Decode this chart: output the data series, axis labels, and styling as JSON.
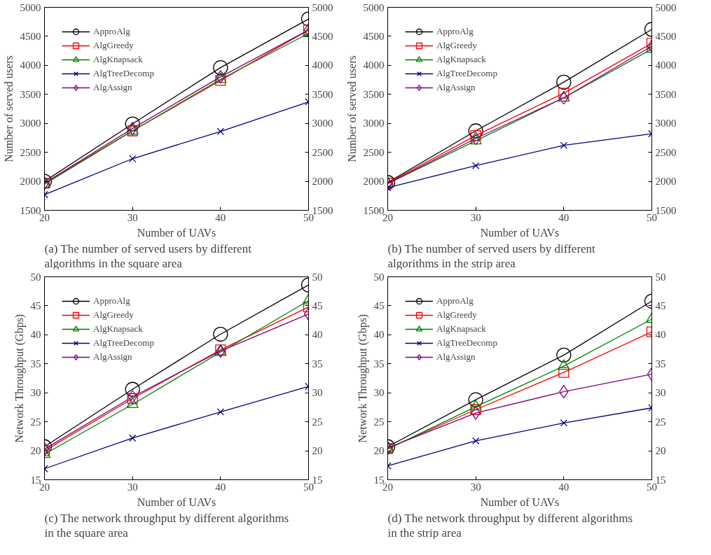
{
  "chart_data": [
    {
      "type": "line",
      "xlabel": "Number of UAVs",
      "ylabel": "Number of served users",
      "x": [
        20,
        30,
        40,
        50
      ],
      "xlim": [
        20,
        50
      ],
      "xticks": [
        20,
        30,
        40,
        50
      ],
      "ylim": [
        1500,
        5000
      ],
      "yticks": [
        1500,
        2000,
        2500,
        3000,
        3500,
        4000,
        4500,
        5000
      ],
      "y2lim": [
        1500,
        5000
      ],
      "y2ticks": [
        1500,
        2000,
        2500,
        3000,
        3500,
        4000,
        4500,
        5000
      ],
      "legend": "top left",
      "grid": false,
      "series": [
        {
          "name": "ApproAlg",
          "color": "#000000",
          "marker": "circle",
          "values": [
            2000,
            2990,
            3960,
            4800
          ]
        },
        {
          "name": "AlgGreedy",
          "color": "#ff0000",
          "marker": "square",
          "values": [
            1970,
            2870,
            3740,
            4610
          ]
        },
        {
          "name": "AlgKnapsack",
          "color": "#008000",
          "marker": "triangle",
          "values": [
            1950,
            2870,
            3760,
            4550
          ]
        },
        {
          "name": "AlgTreeDecomp",
          "color": "#000080",
          "marker": "cross",
          "values": [
            1770,
            2390,
            2860,
            3370
          ]
        },
        {
          "name": "AlgAssign",
          "color": "#800080",
          "marker": "diamond",
          "values": [
            1970,
            2910,
            3800,
            4610
          ]
        }
      ],
      "annotations": [
        "(a) The number of served users by different algorithms in the square area"
      ]
    },
    {
      "type": "line",
      "xlabel": "Number of UAVs",
      "ylabel": "Number of served users",
      "x": [
        20,
        30,
        40,
        50
      ],
      "xlim": [
        20,
        50
      ],
      "xticks": [
        20,
        30,
        40,
        50
      ],
      "ylim": [
        1500,
        5000
      ],
      "yticks": [
        1500,
        2000,
        2500,
        3000,
        3500,
        4000,
        4500,
        5000
      ],
      "y2lim": [
        1500,
        5000
      ],
      "y2ticks": [
        1500,
        2000,
        2500,
        3000,
        3500,
        4000,
        4500,
        5000
      ],
      "legend": "top left",
      "grid": false,
      "series": [
        {
          "name": "ApproAlg",
          "color": "#000000",
          "marker": "circle",
          "values": [
            1980,
            2870,
            3710,
            4620
          ]
        },
        {
          "name": "AlgGreedy",
          "color": "#ff0000",
          "marker": "square",
          "values": [
            1970,
            2790,
            3520,
            4380
          ]
        },
        {
          "name": "AlgKnapsack",
          "color": "#008000",
          "marker": "triangle",
          "values": [
            1960,
            2700,
            3440,
            4280
          ]
        },
        {
          "name": "AlgTreeDecomp",
          "color": "#000080",
          "marker": "cross",
          "values": [
            1890,
            2270,
            2620,
            2820
          ]
        },
        {
          "name": "AlgAssign",
          "color": "#800080",
          "marker": "diamond",
          "values": [
            1960,
            2740,
            3440,
            4330
          ]
        }
      ],
      "annotations": [
        "(b) The number of served users by different algorithms in the strip area"
      ]
    },
    {
      "type": "line",
      "xlabel": "Number of UAVs",
      "ylabel": "Network Throughput (Gbps)",
      "x": [
        20,
        30,
        40,
        50
      ],
      "xlim": [
        20,
        50
      ],
      "xticks": [
        20,
        30,
        40,
        50
      ],
      "ylim": [
        15,
        50
      ],
      "yticks": [
        15,
        20,
        25,
        30,
        35,
        40,
        45,
        50
      ],
      "y2lim": [
        15,
        50
      ],
      "y2ticks": [
        15,
        20,
        25,
        30,
        35,
        40,
        45,
        50
      ],
      "legend": "top left",
      "grid": false,
      "series": [
        {
          "name": "ApproAlg",
          "color": "#000000",
          "marker": "circle",
          "values": [
            20.7,
            30.6,
            40.1,
            48.6
          ]
        },
        {
          "name": "AlgGreedy",
          "color": "#ff0000",
          "marker": "square",
          "values": [
            20.0,
            29.0,
            37.4,
            44.8
          ]
        },
        {
          "name": "AlgKnapsack",
          "color": "#008000",
          "marker": "triangle",
          "values": [
            19.4,
            28.0,
            37.0,
            45.9
          ]
        },
        {
          "name": "AlgTreeDecomp",
          "color": "#000080",
          "marker": "cross",
          "values": [
            16.9,
            22.2,
            26.7,
            31.1
          ]
        },
        {
          "name": "AlgAssign",
          "color": "#800080",
          "marker": "diamond",
          "values": [
            20.3,
            29.3,
            37.2,
            43.6
          ]
        }
      ],
      "annotations": [
        "(c) The network throughput by different algorithms in the square area"
      ]
    },
    {
      "type": "line",
      "xlabel": "Number of UAVs",
      "ylabel": "Network Throughput (Gbps)",
      "x": [
        20,
        30,
        40,
        50
      ],
      "xlim": [
        20,
        50
      ],
      "xticks": [
        20,
        30,
        40,
        50
      ],
      "ylim": [
        15,
        50
      ],
      "yticks": [
        15,
        20,
        25,
        30,
        35,
        40,
        45,
        50
      ],
      "y2lim": [
        15,
        50
      ],
      "y2ticks": [
        15,
        20,
        25,
        30,
        35,
        40,
        45,
        50
      ],
      "legend": "top left",
      "grid": false,
      "series": [
        {
          "name": "ApproAlg",
          "color": "#000000",
          "marker": "circle",
          "values": [
            20.7,
            28.8,
            36.5,
            45.8
          ]
        },
        {
          "name": "AlgGreedy",
          "color": "#ff0000",
          "marker": "square",
          "values": [
            20.4,
            27.1,
            33.5,
            40.5
          ]
        },
        {
          "name": "AlgKnapsack",
          "color": "#008000",
          "marker": "triangle",
          "values": [
            20.3,
            27.6,
            34.6,
            42.7
          ]
        },
        {
          "name": "AlgTreeDecomp",
          "color": "#000080",
          "marker": "cross",
          "values": [
            17.4,
            21.7,
            24.8,
            27.4
          ]
        },
        {
          "name": "AlgAssign",
          "color": "#800080",
          "marker": "diamond",
          "values": [
            20.5,
            26.5,
            30.2,
            33.2
          ]
        }
      ],
      "annotations": [
        "(d) The network throughput by different algorithms in the strip area"
      ]
    }
  ]
}
